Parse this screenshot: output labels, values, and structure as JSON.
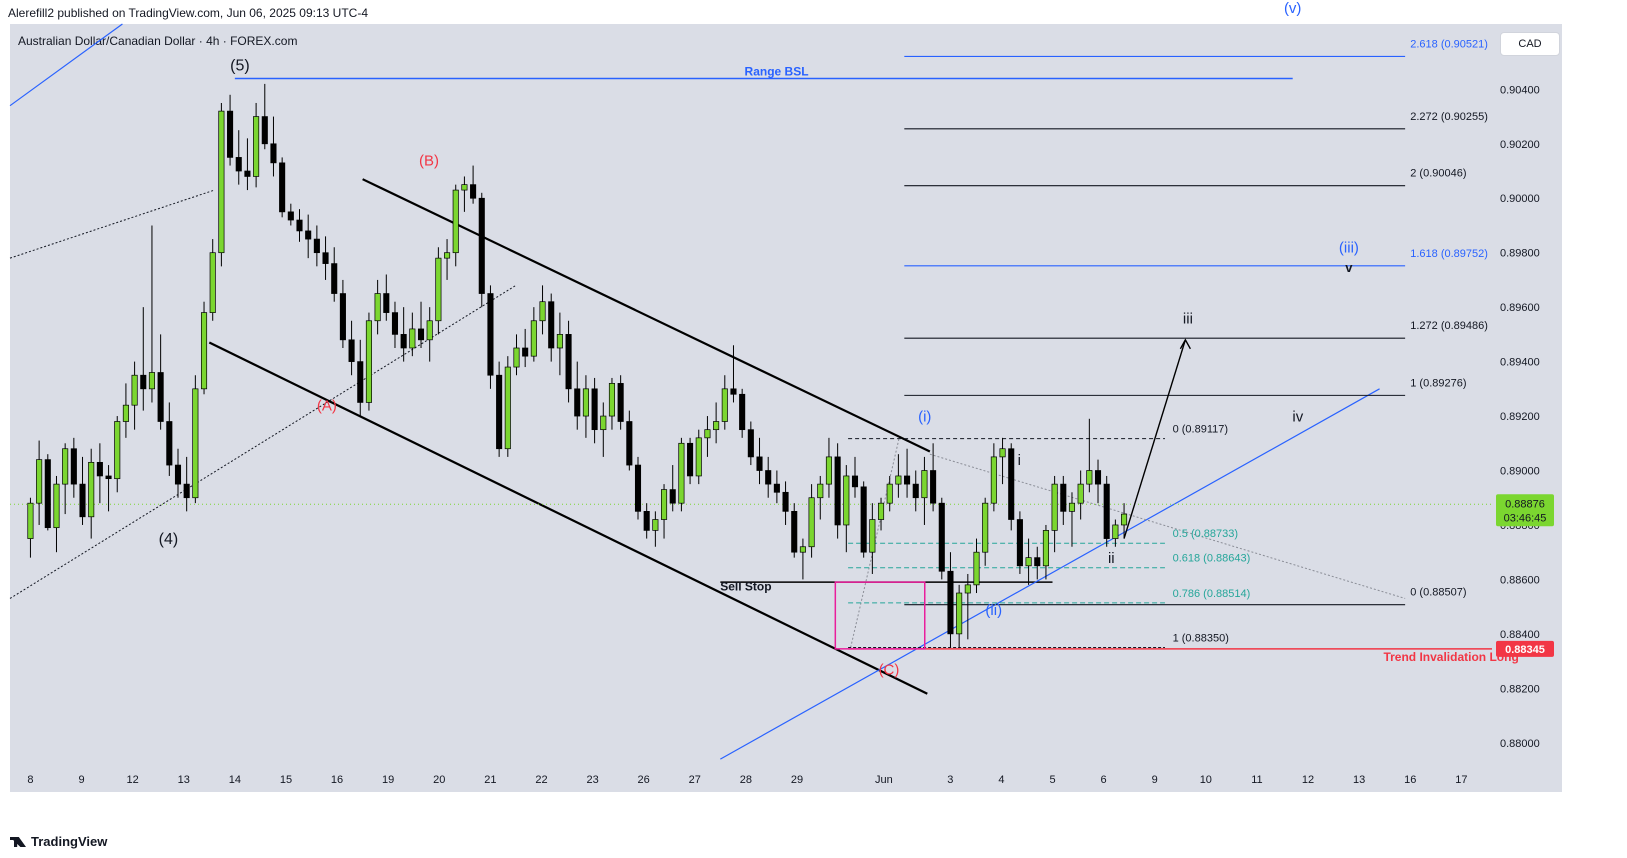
{
  "header": {
    "published": "Alerefill2 published on TradingView.com, Jun 06, 2025 09:13 UTC-4",
    "symbol": "Australian Dollar/Canadian Dollar · 4h · FOREX.com",
    "currency": "CAD",
    "brand": "TradingView"
  },
  "colors": {
    "up": "#7bd630",
    "down": "#000000",
    "blue": "#2962ff",
    "red": "#f23645",
    "teal": "#26a69a",
    "magenta": "#e91e9c"
  },
  "chart_data": {
    "type": "candlestick",
    "title": "",
    "ylim": [
      0.879,
      0.9064
    ],
    "xlim": [
      -0.4,
      28.6
    ],
    "y_ticks": [
      0.88,
      0.882,
      0.884,
      0.886,
      0.888,
      0.89,
      0.892,
      0.894,
      0.896,
      0.898,
      0.9,
      0.902,
      0.904
    ],
    "y_tick_labels": [
      "0.88000",
      "0.88200",
      "0.88400",
      "0.88600",
      "0.88800",
      "0.89000",
      "0.89200",
      "0.89400",
      "0.89600",
      "0.89800",
      "0.90000",
      "0.90200",
      "0.90400"
    ],
    "x_tick_labels": [
      {
        "i": 0,
        "label": "8"
      },
      {
        "i": 1,
        "label": "9"
      },
      {
        "i": 2,
        "label": "12"
      },
      {
        "i": 3,
        "label": "13"
      },
      {
        "i": 4,
        "label": "14"
      },
      {
        "i": 5,
        "label": "15"
      },
      {
        "i": 6,
        "label": "16"
      },
      {
        "i": 7,
        "label": "19"
      },
      {
        "i": 8,
        "label": "20"
      },
      {
        "i": 9,
        "label": "21"
      },
      {
        "i": 10,
        "label": "22"
      },
      {
        "i": 11,
        "label": "23"
      },
      {
        "i": 12,
        "label": "26"
      },
      {
        "i": 13,
        "label": "27"
      },
      {
        "i": 14,
        "label": "28"
      },
      {
        "i": 15,
        "label": "29"
      },
      {
        "i": 16.7,
        "label": "Jun"
      },
      {
        "i": 18,
        "label": "3"
      },
      {
        "i": 19,
        "label": "4"
      },
      {
        "i": 20,
        "label": "5"
      },
      {
        "i": 21,
        "label": "6"
      },
      {
        "i": 22,
        "label": "9"
      },
      {
        "i": 23,
        "label": "10"
      },
      {
        "i": 24,
        "label": "11"
      },
      {
        "i": 25,
        "label": "12"
      },
      {
        "i": 26,
        "label": "13"
      },
      {
        "i": 27,
        "label": "16"
      },
      {
        "i": 28,
        "label": "17"
      }
    ],
    "last_price": "0.88876",
    "countdown": "03:46:45",
    "invalidation_price": "0.88345",
    "candles": [
      [
        0.8875,
        0.889,
        0.8868,
        0.8888
      ],
      [
        0.8888,
        0.8911,
        0.888,
        0.8904
      ],
      [
        0.8904,
        0.8906,
        0.8878,
        0.8879
      ],
      [
        0.8879,
        0.8898,
        0.887,
        0.8895
      ],
      [
        0.8895,
        0.891,
        0.8884,
        0.8908
      ],
      [
        0.8908,
        0.8912,
        0.889,
        0.8895
      ],
      [
        0.8895,
        0.8905,
        0.888,
        0.8883
      ],
      [
        0.8883,
        0.8908,
        0.8875,
        0.8903
      ],
      [
        0.8903,
        0.891,
        0.8888,
        0.8898
      ],
      [
        0.8898,
        0.8902,
        0.8885,
        0.8897
      ],
      [
        0.8897,
        0.892,
        0.8892,
        0.8918
      ],
      [
        0.8918,
        0.8932,
        0.8912,
        0.8924
      ],
      [
        0.8924,
        0.894,
        0.8915,
        0.8935
      ],
      [
        0.8935,
        0.896,
        0.8922,
        0.893
      ],
      [
        0.893,
        0.899,
        0.8925,
        0.8936
      ],
      [
        0.8936,
        0.895,
        0.8915,
        0.8918
      ],
      [
        0.8918,
        0.8925,
        0.8898,
        0.8902
      ],
      [
        0.8902,
        0.8908,
        0.889,
        0.8895
      ],
      [
        0.8895,
        0.8905,
        0.8885,
        0.889
      ],
      [
        0.889,
        0.8935,
        0.8888,
        0.893
      ],
      [
        0.893,
        0.8962,
        0.8928,
        0.8958
      ],
      [
        0.8958,
        0.8985,
        0.8955,
        0.898
      ],
      [
        0.898,
        0.9035,
        0.8975,
        0.9032
      ],
      [
        0.9032,
        0.9038,
        0.9012,
        0.9015
      ],
      [
        0.9015,
        0.9025,
        0.9005,
        0.901
      ],
      [
        0.901,
        0.9022,
        0.9003,
        0.9008
      ],
      [
        0.9008,
        0.9035,
        0.9004,
        0.903
      ],
      [
        0.903,
        0.9042,
        0.9018,
        0.902
      ],
      [
        0.902,
        0.903,
        0.9008,
        0.9013
      ],
      [
        0.9013,
        0.9015,
        0.8993,
        0.8995
      ],
      [
        0.8995,
        0.8998,
        0.899,
        0.8992
      ],
      [
        0.8992,
        0.8996,
        0.8984,
        0.8988
      ],
      [
        0.8988,
        0.8994,
        0.8978,
        0.8985
      ],
      [
        0.8985,
        0.899,
        0.8975,
        0.898
      ],
      [
        0.898,
        0.8986,
        0.897,
        0.8976
      ],
      [
        0.8976,
        0.8982,
        0.8962,
        0.8965
      ],
      [
        0.8965,
        0.897,
        0.8945,
        0.8948
      ],
      [
        0.8948,
        0.8955,
        0.8935,
        0.894
      ],
      [
        0.894,
        0.8948,
        0.892,
        0.8925
      ],
      [
        0.8925,
        0.8958,
        0.8922,
        0.8955
      ],
      [
        0.8955,
        0.897,
        0.895,
        0.8965
      ],
      [
        0.8965,
        0.8972,
        0.8955,
        0.8958
      ],
      [
        0.8958,
        0.8962,
        0.8945,
        0.895
      ],
      [
        0.895,
        0.896,
        0.894,
        0.8945
      ],
      [
        0.8945,
        0.8958,
        0.8942,
        0.8952
      ],
      [
        0.8952,
        0.8962,
        0.8945,
        0.8948
      ],
      [
        0.8948,
        0.896,
        0.894,
        0.8955
      ],
      [
        0.8955,
        0.8982,
        0.895,
        0.8978
      ],
      [
        0.8978,
        0.8985,
        0.897,
        0.898
      ],
      [
        0.898,
        0.9005,
        0.8975,
        0.9003
      ],
      [
        0.9003,
        0.9008,
        0.8995,
        0.9005
      ],
      [
        0.9005,
        0.9012,
        0.8998,
        0.9
      ],
      [
        0.9,
        0.9002,
        0.896,
        0.8965
      ],
      [
        0.8965,
        0.8968,
        0.893,
        0.8935
      ],
      [
        0.8935,
        0.894,
        0.8905,
        0.8908
      ],
      [
        0.8908,
        0.8942,
        0.8905,
        0.8938
      ],
      [
        0.8938,
        0.895,
        0.8935,
        0.8945
      ],
      [
        0.8945,
        0.8952,
        0.8938,
        0.8942
      ],
      [
        0.8942,
        0.896,
        0.894,
        0.8955
      ],
      [
        0.8955,
        0.8968,
        0.895,
        0.8962
      ],
      [
        0.8962,
        0.8965,
        0.894,
        0.8945
      ],
      [
        0.8945,
        0.8958,
        0.8935,
        0.895
      ],
      [
        0.895,
        0.8955,
        0.8925,
        0.893
      ],
      [
        0.893,
        0.894,
        0.8915,
        0.892
      ],
      [
        0.892,
        0.8935,
        0.8912,
        0.893
      ],
      [
        0.893,
        0.8934,
        0.891,
        0.8915
      ],
      [
        0.8915,
        0.8925,
        0.8905,
        0.892
      ],
      [
        0.892,
        0.8934,
        0.8915,
        0.8932
      ],
      [
        0.8932,
        0.8935,
        0.8915,
        0.8918
      ],
      [
        0.8918,
        0.8922,
        0.89,
        0.8902
      ],
      [
        0.8902,
        0.8905,
        0.8882,
        0.8885
      ],
      [
        0.8885,
        0.8888,
        0.8875,
        0.8878
      ],
      [
        0.8878,
        0.8885,
        0.8872,
        0.8882
      ],
      [
        0.8882,
        0.8895,
        0.8875,
        0.8893
      ],
      [
        0.8893,
        0.8902,
        0.8885,
        0.8888
      ],
      [
        0.8888,
        0.8912,
        0.8885,
        0.891
      ],
      [
        0.891,
        0.8912,
        0.8895,
        0.8898
      ],
      [
        0.8898,
        0.8915,
        0.8895,
        0.8912
      ],
      [
        0.8912,
        0.892,
        0.8905,
        0.8915
      ],
      [
        0.8915,
        0.8925,
        0.891,
        0.8918
      ],
      [
        0.8918,
        0.8935,
        0.8915,
        0.893
      ],
      [
        0.893,
        0.8946,
        0.8925,
        0.8928
      ],
      [
        0.8928,
        0.893,
        0.8912,
        0.8915
      ],
      [
        0.8915,
        0.8918,
        0.8902,
        0.8905
      ],
      [
        0.8905,
        0.8912,
        0.8895,
        0.89
      ],
      [
        0.89,
        0.8905,
        0.889,
        0.8895
      ],
      [
        0.8895,
        0.89,
        0.8888,
        0.8892
      ],
      [
        0.8892,
        0.8896,
        0.888,
        0.8885
      ],
      [
        0.8885,
        0.8888,
        0.8868,
        0.887
      ],
      [
        0.887,
        0.8875,
        0.886,
        0.8872
      ],
      [
        0.8872,
        0.8895,
        0.8868,
        0.889
      ],
      [
        0.889,
        0.8898,
        0.8882,
        0.8895
      ],
      [
        0.8895,
        0.8912,
        0.889,
        0.8905
      ],
      [
        0.8905,
        0.891,
        0.8875,
        0.888
      ],
      [
        0.888,
        0.8902,
        0.887,
        0.8898
      ],
      [
        0.8898,
        0.8905,
        0.889,
        0.8894
      ],
      [
        0.8894,
        0.8896,
        0.8868,
        0.887
      ],
      [
        0.887,
        0.8888,
        0.8862,
        0.8882
      ],
      [
        0.8882,
        0.889,
        0.8878,
        0.8888
      ],
      [
        0.8888,
        0.8898,
        0.8885,
        0.8895
      ],
      [
        0.8895,
        0.8906,
        0.889,
        0.8898
      ],
      [
        0.8898,
        0.8908,
        0.889,
        0.8895
      ],
      [
        0.8895,
        0.89,
        0.8885,
        0.889
      ],
      [
        0.889,
        0.8905,
        0.888,
        0.89
      ],
      [
        0.89,
        0.891,
        0.8885,
        0.8888
      ],
      [
        0.8888,
        0.889,
        0.886,
        0.8863
      ],
      [
        0.8863,
        0.887,
        0.8835,
        0.884
      ],
      [
        0.884,
        0.8858,
        0.8835,
        0.8855
      ],
      [
        0.8855,
        0.8862,
        0.8838,
        0.8858
      ],
      [
        0.8858,
        0.8875,
        0.8855,
        0.887
      ],
      [
        0.887,
        0.889,
        0.8865,
        0.8888
      ],
      [
        0.8888,
        0.891,
        0.8885,
        0.8905
      ],
      [
        0.8905,
        0.8912,
        0.8895,
        0.8908
      ],
      [
        0.8908,
        0.891,
        0.8878,
        0.8882
      ],
      [
        0.8882,
        0.8885,
        0.8862,
        0.8865
      ],
      [
        0.8865,
        0.8875,
        0.8858,
        0.8868
      ],
      [
        0.8868,
        0.8872,
        0.886,
        0.8865
      ],
      [
        0.8865,
        0.888,
        0.886,
        0.8878
      ],
      [
        0.8878,
        0.8898,
        0.887,
        0.8895
      ],
      [
        0.8895,
        0.8898,
        0.888,
        0.8885
      ],
      [
        0.8885,
        0.8892,
        0.8872,
        0.8888
      ],
      [
        0.8888,
        0.89,
        0.8882,
        0.8895
      ],
      [
        0.8895,
        0.8919,
        0.8892,
        0.89
      ],
      [
        0.89,
        0.8904,
        0.8888,
        0.8895
      ],
      [
        0.8895,
        0.8898,
        0.8872,
        0.8875
      ],
      [
        0.8875,
        0.8882,
        0.8872,
        0.888
      ],
      [
        0.888,
        0.8888,
        0.8875,
        0.8884
      ]
    ],
    "annotations": [
      {
        "text": "(5)",
        "i": 4.1,
        "y": 0.9047,
        "color": "#131722",
        "size": 16
      },
      {
        "text": "(4)",
        "i": 2.7,
        "y": 0.8873,
        "color": "#131722",
        "size": 16
      },
      {
        "text": "(B)",
        "i": 7.8,
        "y": 0.9012,
        "color": "#f23645",
        "size": 15
      },
      {
        "text": "(A)",
        "i": 5.8,
        "y": 0.8922,
        "color": "#f23645",
        "size": 15
      },
      {
        "text": "(C)",
        "i": 16.8,
        "y": 0.8825,
        "color": "#f23645",
        "size": 15
      },
      {
        "text": "(i)",
        "i": 17.5,
        "y": 0.8918,
        "color": "#2962ff",
        "size": 15
      },
      {
        "text": "(ii)",
        "i": 18.85,
        "y": 0.8847,
        "color": "#2962ff",
        "size": 15
      },
      {
        "text": "(iii)",
        "i": 25.8,
        "y": 0.898,
        "color": "#2962ff",
        "size": 15
      },
      {
        "text": "(v)",
        "i": 24.7,
        "y": 0.9068,
        "color": "#2962ff",
        "size": 15
      },
      {
        "text": "i",
        "i": 19.35,
        "y": 0.8902,
        "color": "#131722",
        "size": 15
      },
      {
        "text": "ii",
        "i": 21.15,
        "y": 0.8866,
        "color": "#131722",
        "size": 15
      },
      {
        "text": "iii",
        "i": 22.65,
        "y": 0.8954,
        "color": "#131722",
        "size": 15
      },
      {
        "text": "iv",
        "i": 24.8,
        "y": 0.8918,
        "color": "#131722",
        "size": 15
      },
      {
        "text": "v",
        "i": 25.8,
        "y": 0.8973,
        "color": "#131722",
        "size": 13
      },
      {
        "text": "Sell Stop",
        "i": 14.0,
        "y": 0.8856,
        "color": "#131722",
        "size": 12
      },
      {
        "text": "Range BSL",
        "i": 14.6,
        "y": 0.9045,
        "color": "#2962ff",
        "size": 12
      },
      {
        "text": "Trend Invalidation Long",
        "i": 27.8,
        "y": 0.883,
        "color": "#f23645",
        "size": 12
      }
    ],
    "fib_levels_upper": [
      {
        "label": "2.618 (0.90521)",
        "y": 0.90521,
        "color": "#2962ff"
      },
      {
        "label": "2.272 (0.90255)",
        "y": 0.90255,
        "color": "#131722"
      },
      {
        "label": "2 (0.90046)",
        "y": 0.90046,
        "color": "#131722"
      },
      {
        "label": "1.618 (0.89752)",
        "y": 0.89752,
        "color": "#2962ff"
      },
      {
        "label": "1.272 (0.89486)",
        "y": 0.89486,
        "color": "#131722"
      },
      {
        "label": "1 (0.89276)",
        "y": 0.89276,
        "color": "#131722"
      },
      {
        "label": "0 (0.88507)",
        "y": 0.88507,
        "color": "#131722"
      }
    ],
    "fib_levels_retrace": [
      {
        "label": "0 (0.89117)",
        "y": 0.89117,
        "color": "#131722"
      },
      {
        "label": "0.5 (0.88733)",
        "y": 0.88733,
        "color": "#26a69a"
      },
      {
        "label": "0.618 (0.88643)",
        "y": 0.88643,
        "color": "#26a69a"
      },
      {
        "label": "0.786 (0.88514)",
        "y": 0.88514,
        "color": "#26a69a"
      },
      {
        "label": "1 (0.88350)",
        "y": 0.8835,
        "color": "#131722"
      }
    ]
  }
}
